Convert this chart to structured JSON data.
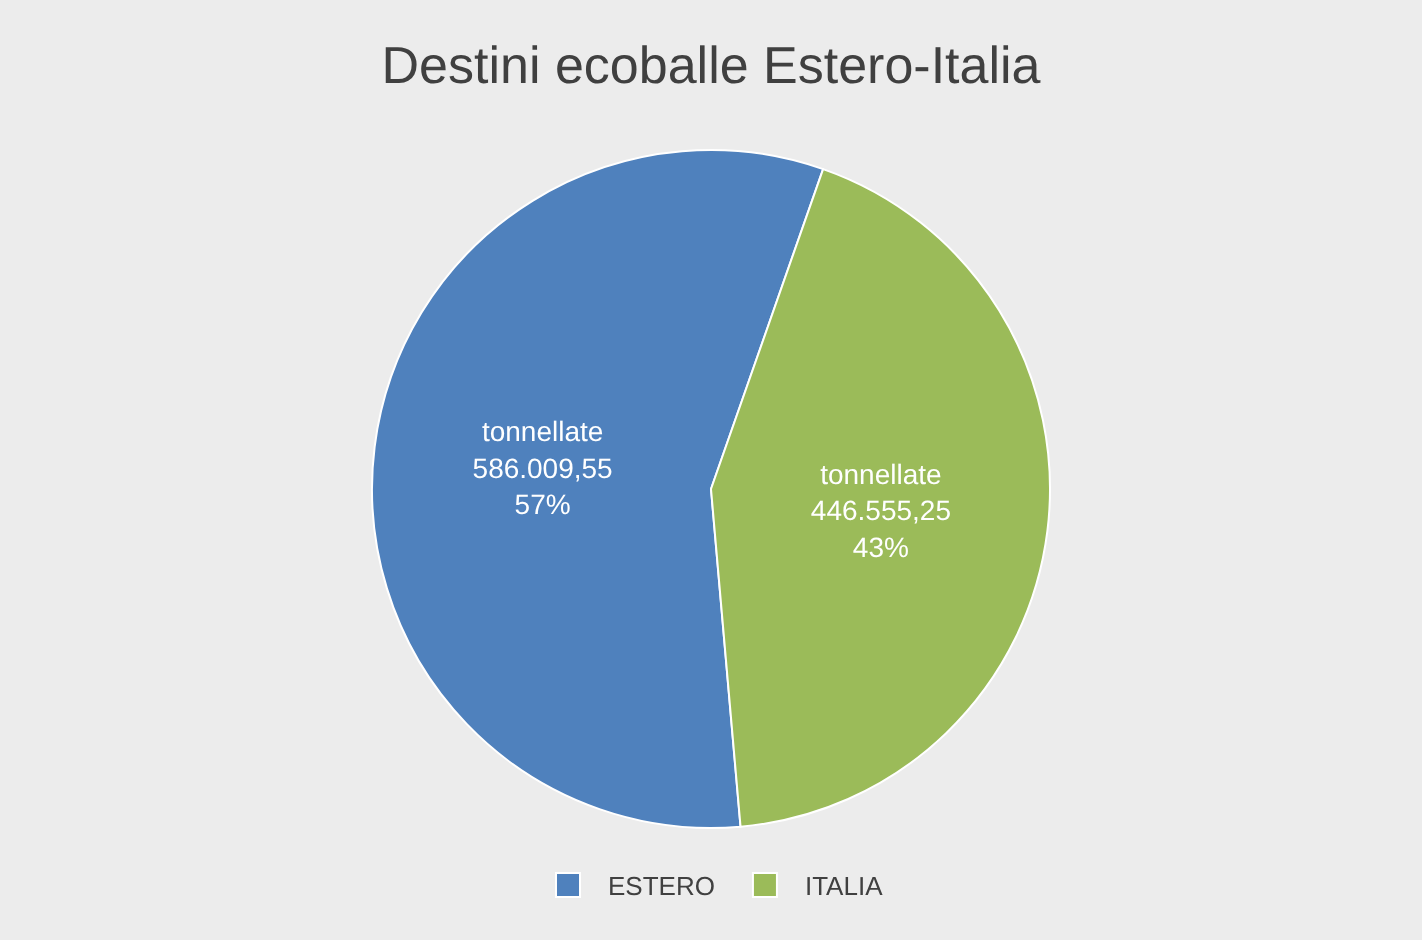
{
  "chart_data": {
    "type": "pie",
    "title": "Destini ecoballe Estero-Italia",
    "categories": [
      "ESTERO",
      "ITALIA"
    ],
    "values": [
      586009.55,
      446555.25
    ],
    "colors": [
      "#4f81bd",
      "#9bbb59"
    ],
    "value_labels": [
      "tonnellate\n586.009,55\n57%",
      "tonnellate\n446.555,25\n43%"
    ],
    "legend": "bottom"
  }
}
